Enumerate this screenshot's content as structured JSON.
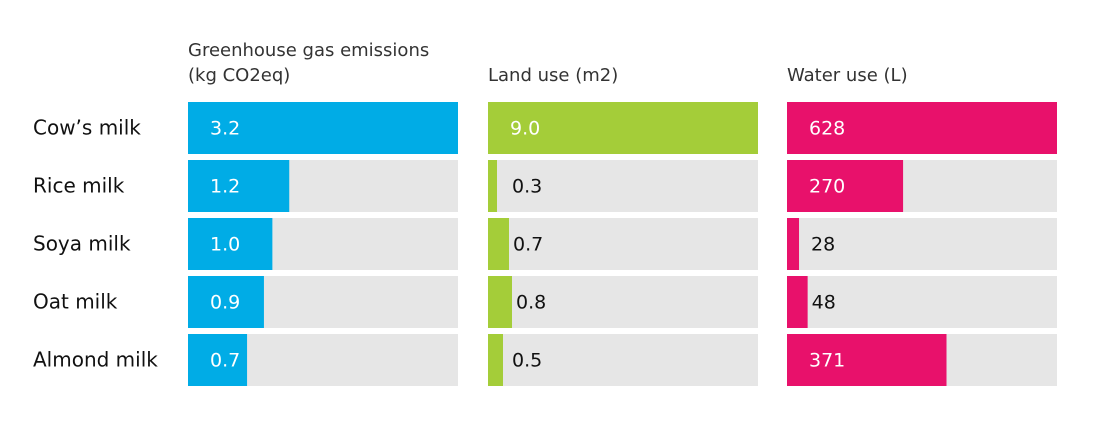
{
  "chart_data": {
    "type": "bar",
    "orientation": "horizontal",
    "categories": [
      "Cow’s milk",
      "Rice milk",
      "Soya milk",
      "Oat milk",
      "Almond milk"
    ],
    "series": [
      {
        "name": "Greenhouse gas emissions (kg CO2eq)",
        "color": "#00ace6",
        "values": [
          3.2,
          1.2,
          1.0,
          0.9,
          0.7
        ],
        "value_labels": [
          "3.2",
          "1.2",
          "1.0",
          "0.9",
          "0.7"
        ],
        "xlim": [
          0,
          3.2
        ]
      },
      {
        "name": "Land use (m2)",
        "color": "#a4cd39",
        "values": [
          9.0,
          0.3,
          0.7,
          0.8,
          0.5
        ],
        "value_labels": [
          "9.0",
          "0.3",
          "0.7",
          "0.8",
          "0.5"
        ],
        "xlim": [
          0,
          9.0
        ]
      },
      {
        "name": "Water use (L)",
        "color": "#e8116b",
        "values": [
          628,
          270,
          28,
          48,
          371
        ],
        "xlim": [
          0,
          628
        ]
      }
    ]
  }
}
